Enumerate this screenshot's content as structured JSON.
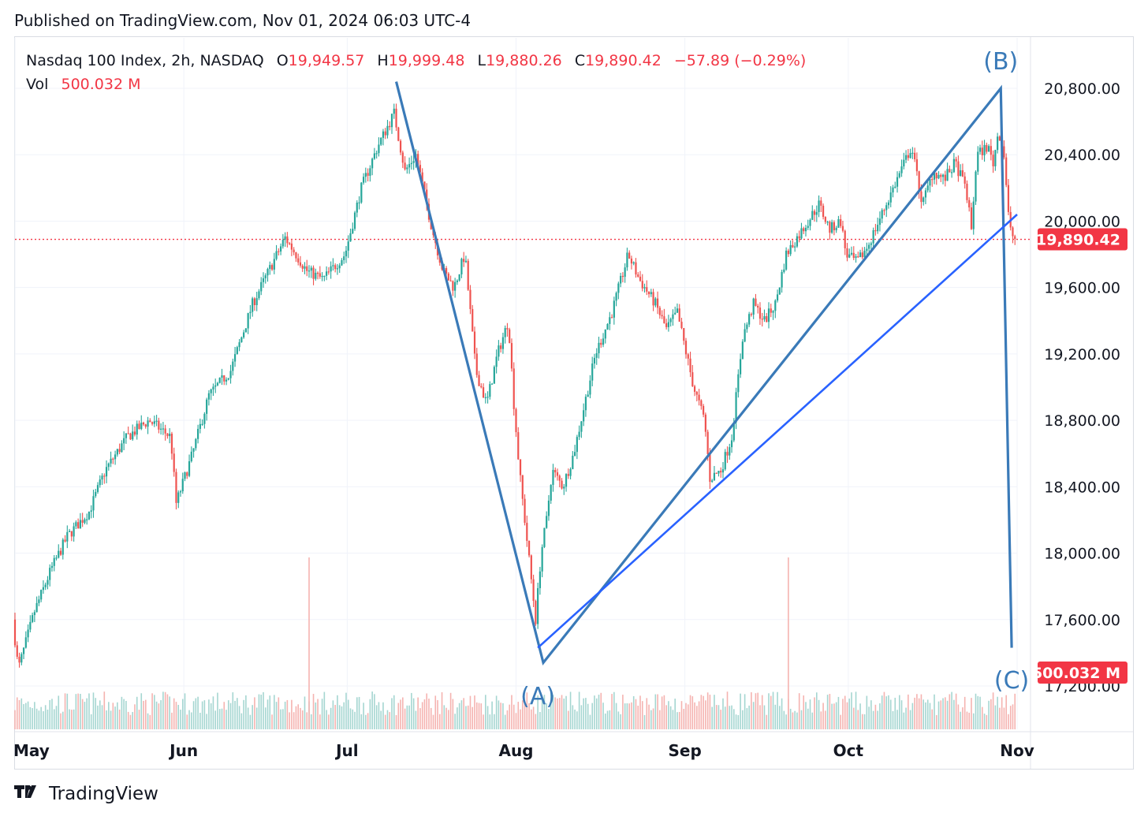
{
  "header": {
    "published": "Published on TradingView.com, Nov 01, 2024 06:03 UTC-4"
  },
  "legend": {
    "symbol": "Nasdaq 100 Index, 2h, NASDAQ",
    "open_label": "O",
    "open": "19,949.57",
    "high_label": "H",
    "high": "19,999.48",
    "low_label": "L",
    "low": "19,880.26",
    "close_label": "C",
    "close": "19,890.42",
    "change": "−57.89 (−0.29%)",
    "vol_label": "Vol",
    "vol": "500.032 M"
  },
  "footer": {
    "brand": "TradingView"
  },
  "colors": {
    "up": "#26a69a",
    "down": "#ef5350",
    "wave": "#3a7ab8",
    "trend": "#2962ff",
    "price_line": "#f23645",
    "vol_up": "#a5d6d1",
    "vol_down": "#f5b3b0"
  },
  "chart_data": {
    "type": "candlestick",
    "interval": "2h",
    "symbol": "Nasdaq 100 Index",
    "exchange": "NASDAQ",
    "x_range": [
      "2024-05-01",
      "2024-11-01"
    ],
    "ylim": [
      17000,
      21100
    ],
    "y_ticks": [
      "17,200.00",
      "17,600.00",
      "18,000.00",
      "18,400.00",
      "18,800.00",
      "19,200.00",
      "19,600.00",
      "20,000.00",
      "20,400.00",
      "20,800.00"
    ],
    "x_ticks": [
      {
        "label": "May",
        "date": "2024-05-01"
      },
      {
        "label": "Jun",
        "date": "2024-06-01"
      },
      {
        "label": "Jul",
        "date": "2024-07-01"
      },
      {
        "label": "Aug",
        "date": "2024-08-01"
      },
      {
        "label": "Sep",
        "date": "2024-09-01"
      },
      {
        "label": "Oct",
        "date": "2024-10-01"
      },
      {
        "label": "Nov",
        "date": "2024-11-01"
      }
    ],
    "price_path": [
      {
        "date": "2024-05-01",
        "close": 17600
      },
      {
        "date": "2024-05-02",
        "close": 17300
      },
      {
        "date": "2024-05-05",
        "close": 17650
      },
      {
        "date": "2024-05-08",
        "close": 17900
      },
      {
        "date": "2024-05-11",
        "close": 18100
      },
      {
        "date": "2024-05-15",
        "close": 18250
      },
      {
        "date": "2024-05-18",
        "close": 18500
      },
      {
        "date": "2024-05-22",
        "close": 18700
      },
      {
        "date": "2024-05-26",
        "close": 18800
      },
      {
        "date": "2024-05-30",
        "close": 18700
      },
      {
        "date": "2024-05-31",
        "close": 18300
      },
      {
        "date": "2024-06-03",
        "close": 18600
      },
      {
        "date": "2024-06-06",
        "close": 18950
      },
      {
        "date": "2024-06-10",
        "close": 19100
      },
      {
        "date": "2024-06-14",
        "close": 19500
      },
      {
        "date": "2024-06-17",
        "close": 19700
      },
      {
        "date": "2024-06-20",
        "close": 19900
      },
      {
        "date": "2024-06-24",
        "close": 19700
      },
      {
        "date": "2024-06-27",
        "close": 19650
      },
      {
        "date": "2024-07-01",
        "close": 19800
      },
      {
        "date": "2024-07-04",
        "close": 20200
      },
      {
        "date": "2024-07-07",
        "close": 20450
      },
      {
        "date": "2024-07-10",
        "close": 20650
      },
      {
        "date": "2024-07-12",
        "close": 20300
      },
      {
        "date": "2024-07-14",
        "close": 20400
      },
      {
        "date": "2024-07-17",
        "close": 19950
      },
      {
        "date": "2024-07-19",
        "close": 19700
      },
      {
        "date": "2024-07-21",
        "close": 19600
      },
      {
        "date": "2024-07-23",
        "close": 19800
      },
      {
        "date": "2024-07-25",
        "close": 19100
      },
      {
        "date": "2024-07-27",
        "close": 18900
      },
      {
        "date": "2024-07-29",
        "close": 19200
      },
      {
        "date": "2024-07-31",
        "close": 19400
      },
      {
        "date": "2024-08-01",
        "close": 18900
      },
      {
        "date": "2024-08-02",
        "close": 18500
      },
      {
        "date": "2024-08-05",
        "close": 17600
      },
      {
        "date": "2024-08-06",
        "close": 18000
      },
      {
        "date": "2024-08-07",
        "close": 18200
      },
      {
        "date": "2024-08-08",
        "close": 18500
      },
      {
        "date": "2024-08-10",
        "close": 18400
      },
      {
        "date": "2024-08-12",
        "close": 18600
      },
      {
        "date": "2024-08-14",
        "close": 18900
      },
      {
        "date": "2024-08-16",
        "close": 19200
      },
      {
        "date": "2024-08-19",
        "close": 19450
      },
      {
        "date": "2024-08-22",
        "close": 19800
      },
      {
        "date": "2024-08-24",
        "close": 19650
      },
      {
        "date": "2024-08-27",
        "close": 19500
      },
      {
        "date": "2024-08-29",
        "close": 19350
      },
      {
        "date": "2024-08-31",
        "close": 19450
      },
      {
        "date": "2024-09-03",
        "close": 19000
      },
      {
        "date": "2024-09-05",
        "close": 18800
      },
      {
        "date": "2024-09-06",
        "close": 18450
      },
      {
        "date": "2024-09-08",
        "close": 18500
      },
      {
        "date": "2024-09-10",
        "close": 18700
      },
      {
        "date": "2024-09-12",
        "close": 19300
      },
      {
        "date": "2024-09-14",
        "close": 19500
      },
      {
        "date": "2024-09-16",
        "close": 19400
      },
      {
        "date": "2024-09-18",
        "close": 19500
      },
      {
        "date": "2024-09-20",
        "close": 19800
      },
      {
        "date": "2024-09-22",
        "close": 19900
      },
      {
        "date": "2024-09-24",
        "close": 20000
      },
      {
        "date": "2024-09-26",
        "close": 20100
      },
      {
        "date": "2024-09-28",
        "close": 19950
      },
      {
        "date": "2024-09-30",
        "close": 20000
      },
      {
        "date": "2024-10-01",
        "close": 19800
      },
      {
        "date": "2024-10-03",
        "close": 19750
      },
      {
        "date": "2024-10-05",
        "close": 19850
      },
      {
        "date": "2024-10-07",
        "close": 20000
      },
      {
        "date": "2024-10-09",
        "close": 20150
      },
      {
        "date": "2024-10-11",
        "close": 20300
      },
      {
        "date": "2024-10-13",
        "close": 20450
      },
      {
        "date": "2024-10-15",
        "close": 20100
      },
      {
        "date": "2024-10-17",
        "close": 20300
      },
      {
        "date": "2024-10-19",
        "close": 20250
      },
      {
        "date": "2024-10-21",
        "close": 20350
      },
      {
        "date": "2024-10-23",
        "close": 20200
      },
      {
        "date": "2024-10-24",
        "close": 19950
      },
      {
        "date": "2024-10-25",
        "close": 20400
      },
      {
        "date": "2024-10-27",
        "close": 20450
      },
      {
        "date": "2024-10-28",
        "close": 20350
      },
      {
        "date": "2024-10-29",
        "close": 20550
      },
      {
        "date": "2024-10-30",
        "close": 20400
      },
      {
        "date": "2024-10-31",
        "close": 19950
      },
      {
        "date": "2024-11-01",
        "close": 19890
      }
    ],
    "volume_spikes": [
      {
        "date": "2024-06-24",
        "direction": "down"
      },
      {
        "date": "2024-09-20",
        "direction": "down"
      }
    ],
    "last_price": {
      "value": 19890.42,
      "label": "19,890.42"
    },
    "last_volume": {
      "label": "500.032 M"
    },
    "annotations": [
      {
        "label": "(A)",
        "date": "2024-08-05",
        "price": 17330
      },
      {
        "label": "(B)",
        "date": "2024-10-29",
        "price": 20800
      },
      {
        "label": "(C)",
        "date": "2024-10-31",
        "price": 17430
      }
    ],
    "drawings": [
      {
        "kind": "wave",
        "points": [
          {
            "date": "2024-07-10",
            "price": 20840
          },
          {
            "date": "2024-08-06",
            "price": 17340
          },
          {
            "date": "2024-10-29",
            "price": 20800
          },
          {
            "date": "2024-10-31",
            "price": 17430
          }
        ]
      },
      {
        "kind": "trendline",
        "points": [
          {
            "date": "2024-08-05",
            "price": 17430
          },
          {
            "date": "2024-11-01",
            "price": 20040
          }
        ]
      }
    ]
  }
}
